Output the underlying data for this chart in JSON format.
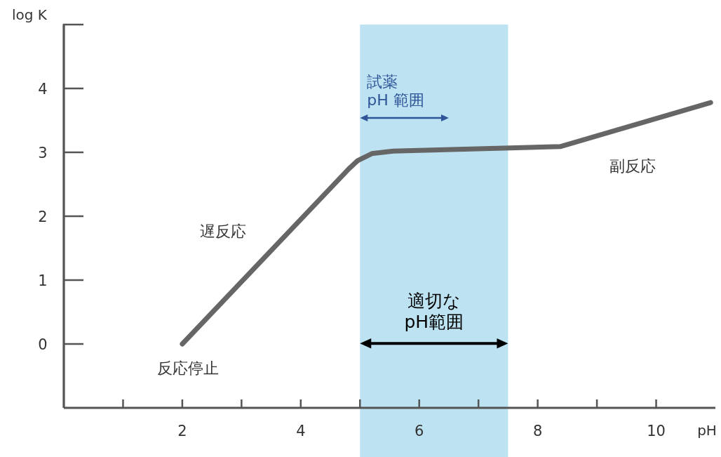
{
  "chart_data": {
    "type": "line",
    "ylabel": "log K",
    "xlabel": "pH",
    "xlim": [
      0,
      11
    ],
    "ylim": [
      -1,
      5
    ],
    "xticks": [
      {
        "value": 1,
        "label": null
      },
      2,
      {
        "value": 3,
        "label": null
      },
      4,
      {
        "value": 5,
        "label": null
      },
      6,
      {
        "value": 7,
        "label": null
      },
      8,
      {
        "value": 9,
        "label": null
      },
      10
    ],
    "yticks": [
      0,
      1,
      2,
      3,
      4
    ],
    "series": [
      {
        "color": "#666666",
        "x": [
          2,
          4.81,
          4.96,
          5.2,
          5.56,
          8.38,
          10.92
        ],
        "values": [
          0,
          2.74,
          2.87,
          2.98,
          3.02,
          3.09,
          3.78
        ]
      }
    ],
    "bands": [
      {
        "axis": "x",
        "from": 5,
        "to": 7.5,
        "label": "適切な\npH範囲",
        "color": "#bde3f3"
      }
    ],
    "annotations": [
      "試薬\npH 範囲",
      "遅反応",
      "副反応",
      "反応停止"
    ],
    "grid": false,
    "marker": "none"
  }
}
